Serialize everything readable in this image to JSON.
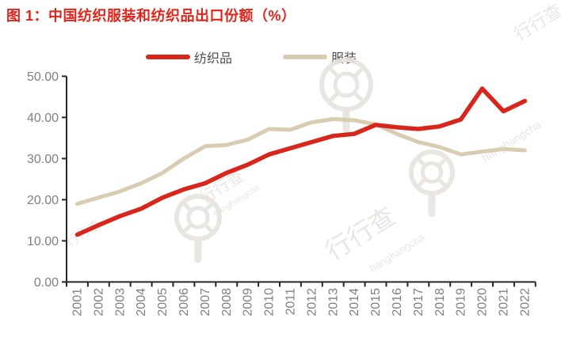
{
  "title": "图 1：中国纺织服装和纺织品出口份额（%）",
  "legend": [
    {
      "label": "纺织品",
      "color": "#d9261c"
    },
    {
      "label": "服装",
      "color": "#d8cdb2"
    }
  ],
  "colors": {
    "title_red": "#e0241a",
    "series_red": "#d9261c",
    "series_beige": "#d8cdb2",
    "axis_line": "#262626",
    "axis_text": "#7f7f7f",
    "legend_text": "#4d4d4d",
    "watermark": "#e7e4df"
  },
  "watermarks": {
    "brand": "行行查",
    "brand_latin": "hanghangcha"
  },
  "chart_data": {
    "type": "line",
    "title": "图 1：中国纺织服装和纺织品出口份额（%）",
    "categories": [
      "2001",
      "2002",
      "2003",
      "2004",
      "2005",
      "2006",
      "2007",
      "2008",
      "2009",
      "2010",
      "2011",
      "2012",
      "2013",
      "2014",
      "2015",
      "2016",
      "2017",
      "2018",
      "2019",
      "2020",
      "2021",
      "2022"
    ],
    "series": [
      {
        "name": "纺织品",
        "color": "#d9261c",
        "values": [
          11.5,
          13.8,
          16.0,
          17.8,
          20.5,
          22.5,
          24.0,
          26.5,
          28.5,
          31.0,
          32.5,
          34.0,
          35.5,
          36.0,
          38.2,
          37.6,
          37.2,
          37.8,
          39.5,
          47.0,
          41.5,
          44.0
        ]
      },
      {
        "name": "服装",
        "color": "#d8cdb2",
        "values": [
          19.0,
          20.5,
          22.0,
          24.0,
          26.5,
          30.0,
          33.0,
          33.3,
          34.6,
          37.2,
          37.0,
          38.8,
          39.6,
          39.3,
          38.3,
          36.0,
          34.0,
          32.8,
          31.0,
          31.7,
          32.3,
          32.0
        ]
      }
    ],
    "xlabel": "",
    "ylabel": "",
    "ylim": [
      0,
      50
    ],
    "ytick_labels": [
      "0.00",
      "10.00",
      "20.00",
      "30.00",
      "40.00",
      "50.00"
    ],
    "x_tick_label_rotation": -90,
    "grid": false,
    "legend_position": "top"
  }
}
